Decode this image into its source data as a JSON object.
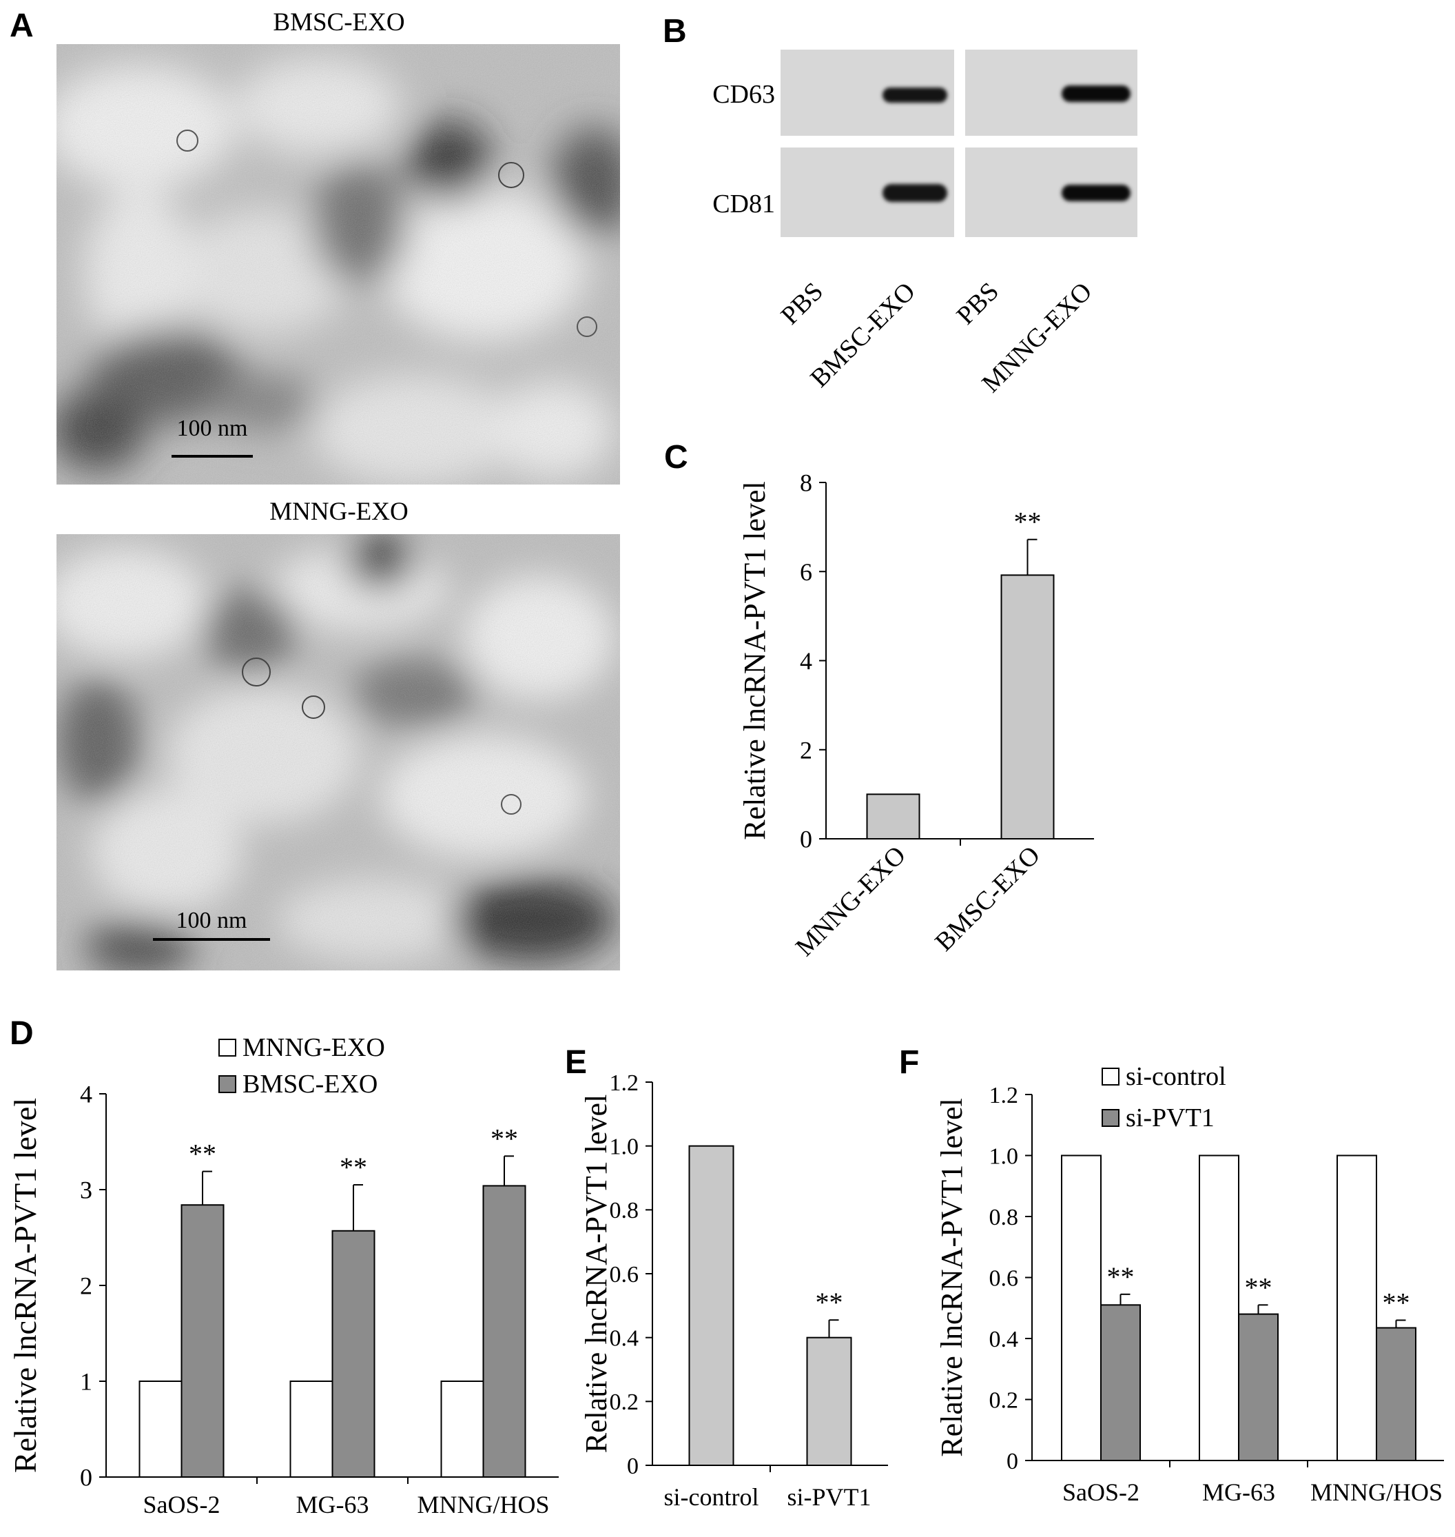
{
  "panels": {
    "a": {
      "label": "A",
      "top_caption": "BMSC-EXO",
      "bottom_caption": "MNNG-EXO",
      "top_scale": "100 nm",
      "bottom_scale": "100 nm"
    },
    "b": {
      "label": "B",
      "rows": [
        "CD63",
        "CD81"
      ],
      "lanes": [
        "PBS",
        "BMSC-EXO",
        "PBS",
        "MNNG-EXO"
      ]
    },
    "c": {
      "label": "C"
    },
    "d": {
      "label": "D"
    },
    "e": {
      "label": "E"
    },
    "f": {
      "label": "F"
    }
  },
  "chart_data": [
    {
      "id": "C",
      "type": "bar",
      "categories": [
        "MNNG-EXO",
        "BMSC-EXO"
      ],
      "values": [
        1.0,
        5.92
      ],
      "errors": [
        0,
        0.8
      ],
      "significance": [
        "",
        "**"
      ],
      "ylabel": "Relative lncRNA-PVT1 level",
      "ylim": [
        0,
        8
      ],
      "yticks": [
        "0",
        "2",
        "4",
        "6",
        "8"
      ],
      "bar_color": "#c8c8c8",
      "grid": false
    },
    {
      "id": "D",
      "type": "bar",
      "categories": [
        "SaOS-2",
        "MG-63",
        "MNNG/HOS"
      ],
      "series": [
        {
          "name": "MNNG-EXO",
          "values": [
            1.0,
            1.0,
            1.0
          ],
          "errors": [
            0,
            0,
            0
          ],
          "color": "#ffffff"
        },
        {
          "name": "BMSC-EXO",
          "values": [
            2.84,
            2.57,
            3.04
          ],
          "errors": [
            0.35,
            0.48,
            0.31
          ],
          "color": "#8c8c8c"
        }
      ],
      "significance": [
        "**",
        "**",
        "**"
      ],
      "ylabel": "Relative lncRNA-PVT1 level",
      "ylim": [
        0,
        4
      ],
      "yticks": [
        "0",
        "1",
        "2",
        "3",
        "4"
      ],
      "legend": "top-center",
      "grid": false
    },
    {
      "id": "E",
      "type": "bar",
      "categories": [
        "si-control",
        "si-PVT1"
      ],
      "values": [
        1.0,
        0.4
      ],
      "errors": [
        0,
        0.055
      ],
      "significance": [
        "",
        "**"
      ],
      "ylabel": "Relative lncRNA-PVT1 level",
      "ylim": [
        0,
        1.2
      ],
      "yticks": [
        "0",
        "0.2",
        "0.4",
        "0.6",
        "0.8",
        "1.0",
        "1.2"
      ],
      "bar_color": "#c8c8c8",
      "grid": false
    },
    {
      "id": "F",
      "type": "bar",
      "categories": [
        "SaOS-2",
        "MG-63",
        "MNNG/HOS"
      ],
      "series": [
        {
          "name": "si-control",
          "values": [
            1.0,
            1.0,
            1.0
          ],
          "errors": [
            0,
            0,
            0
          ],
          "color": "#ffffff"
        },
        {
          "name": "si-PVT1",
          "values": [
            0.51,
            0.48,
            0.435
          ],
          "errors": [
            0.035,
            0.03,
            0.025
          ],
          "color": "#8c8c8c"
        }
      ],
      "significance": [
        "**",
        "**",
        "**"
      ],
      "ylabel": "Relative lncRNA-PVT1 level",
      "ylim": [
        0,
        1.2
      ],
      "yticks": [
        "0",
        "0.2",
        "0.4",
        "0.6",
        "0.8",
        "1.0",
        "1.2"
      ],
      "legend": "top-center",
      "grid": false
    }
  ]
}
